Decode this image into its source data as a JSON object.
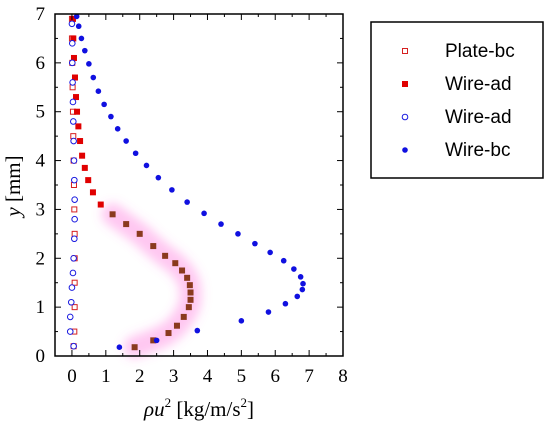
{
  "chart_data": {
    "type": "scatter",
    "xlim": [
      -0.5,
      8
    ],
    "ylim": [
      0,
      7
    ],
    "x_ticks": [
      "0",
      "1",
      "2",
      "3",
      "4",
      "5",
      "6",
      "7",
      "8"
    ],
    "y_ticks": [
      "0",
      "1",
      "2",
      "3",
      "4",
      "5",
      "6",
      "7"
    ],
    "ylabel_italic": "y",
    "ylabel_rest": " [mm]",
    "xlabel_rho_u": "ρu",
    "xlabel_exp": "2",
    "xlabel_unit_pre": " [kg/m/s",
    "xlabel_unit_exp": "2",
    "xlabel_unit_post": "]",
    "grid": false,
    "legend_position": "right",
    "series": [
      {
        "name": "Plate-bc",
        "marker": "open-square",
        "color": "#d62020",
        "points": [
          [
            0.05,
            0.2
          ],
          [
            0.07,
            0.5
          ],
          [
            0.08,
            1.0
          ],
          [
            0.08,
            1.5
          ],
          [
            0.08,
            2.0
          ],
          [
            0.08,
            2.5
          ],
          [
            0.07,
            3.0
          ],
          [
            0.06,
            3.5
          ],
          [
            0.05,
            4.0
          ],
          [
            0.04,
            4.5
          ],
          [
            0.03,
            5.0
          ],
          [
            0.02,
            5.5
          ],
          [
            0.01,
            6.0
          ],
          [
            0.0,
            6.5
          ],
          [
            0.0,
            6.9
          ]
        ]
      },
      {
        "name": "Wire-ad",
        "marker": "filled-square",
        "color": "#e00000",
        "points": [
          [
            1.85,
            0.18
          ],
          [
            2.4,
            0.32
          ],
          [
            2.85,
            0.47
          ],
          [
            3.1,
            0.62
          ],
          [
            3.3,
            0.8
          ],
          [
            3.45,
            1.0
          ],
          [
            3.5,
            1.15
          ],
          [
            3.5,
            1.3
          ],
          [
            3.48,
            1.45
          ],
          [
            3.4,
            1.6
          ],
          [
            3.25,
            1.75
          ],
          [
            3.05,
            1.9
          ],
          [
            2.75,
            2.05
          ],
          [
            2.4,
            2.25
          ],
          [
            2.0,
            2.5
          ],
          [
            1.6,
            2.7
          ],
          [
            1.2,
            2.9
          ],
          [
            0.85,
            3.1
          ],
          [
            0.62,
            3.35
          ],
          [
            0.48,
            3.6
          ],
          [
            0.38,
            3.85
          ],
          [
            0.3,
            4.1
          ],
          [
            0.24,
            4.4
          ],
          [
            0.19,
            4.7
          ],
          [
            0.15,
            5.0
          ],
          [
            0.12,
            5.3
          ],
          [
            0.09,
            5.7
          ],
          [
            0.06,
            6.1
          ],
          [
            0.04,
            6.5
          ],
          [
            0.03,
            6.9
          ]
        ]
      },
      {
        "name": "Wire-ad",
        "marker": "open-circle",
        "color": "#1a1ae0",
        "points": [
          [
            0.05,
            0.2
          ],
          [
            -0.05,
            0.5
          ],
          [
            -0.05,
            0.8
          ],
          [
            -0.02,
            1.1
          ],
          [
            0.0,
            1.4
          ],
          [
            0.03,
            1.7
          ],
          [
            0.05,
            2.0
          ],
          [
            0.07,
            2.4
          ],
          [
            0.08,
            2.8
          ],
          [
            0.08,
            3.2
          ],
          [
            0.07,
            3.6
          ],
          [
            0.06,
            4.0
          ],
          [
            0.05,
            4.4
          ],
          [
            0.04,
            4.8
          ],
          [
            0.03,
            5.2
          ],
          [
            0.02,
            5.6
          ],
          [
            0.01,
            6.0
          ],
          [
            0.01,
            6.4
          ],
          [
            0.0,
            6.8
          ]
        ]
      },
      {
        "name": "Wire-bc",
        "marker": "filled-circle",
        "color": "#1010e0",
        "points": [
          [
            1.4,
            0.18
          ],
          [
            2.5,
            0.32
          ],
          [
            3.7,
            0.52
          ],
          [
            5.0,
            0.72
          ],
          [
            5.8,
            0.9
          ],
          [
            6.3,
            1.07
          ],
          [
            6.65,
            1.22
          ],
          [
            6.8,
            1.36
          ],
          [
            6.82,
            1.48
          ],
          [
            6.75,
            1.62
          ],
          [
            6.55,
            1.78
          ],
          [
            6.25,
            1.95
          ],
          [
            5.85,
            2.12
          ],
          [
            5.4,
            2.3
          ],
          [
            4.9,
            2.5
          ],
          [
            4.4,
            2.7
          ],
          [
            3.9,
            2.92
          ],
          [
            3.4,
            3.15
          ],
          [
            2.95,
            3.4
          ],
          [
            2.55,
            3.65
          ],
          [
            2.2,
            3.9
          ],
          [
            1.88,
            4.15
          ],
          [
            1.6,
            4.4
          ],
          [
            1.35,
            4.65
          ],
          [
            1.15,
            4.9
          ],
          [
            0.95,
            5.15
          ],
          [
            0.78,
            5.42
          ],
          [
            0.63,
            5.7
          ],
          [
            0.5,
            5.98
          ],
          [
            0.38,
            6.25
          ],
          [
            0.28,
            6.5
          ],
          [
            0.2,
            6.75
          ],
          [
            0.14,
            6.95
          ]
        ]
      }
    ]
  }
}
